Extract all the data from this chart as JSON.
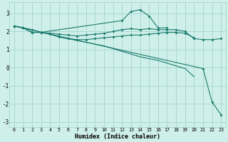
{
  "title": "",
  "xlabel": "Humidex (Indice chaleur)",
  "ylabel": "",
  "bg_color": "#cff0ea",
  "grid_color": "#aad8d2",
  "line_color": "#1a7a6e",
  "xlim": [
    -0.5,
    23.5
  ],
  "ylim": [
    -3.3,
    3.6
  ],
  "yticks": [
    -3,
    -2,
    -1,
    0,
    1,
    2,
    3
  ],
  "xticks": [
    0,
    1,
    2,
    3,
    4,
    5,
    6,
    7,
    8,
    9,
    10,
    11,
    12,
    13,
    14,
    15,
    16,
    17,
    18,
    19,
    20,
    21,
    22,
    23
  ],
  "lines": [
    {
      "x": [
        0,
        1,
        2,
        3,
        4,
        5,
        6,
        7,
        8,
        9,
        10,
        11,
        12,
        13,
        14,
        15,
        16,
        17,
        18,
        19,
        20,
        21,
        22,
        23
      ],
      "y": [
        2.3,
        2.2,
        2.1,
        1.95,
        1.9,
        1.85,
        1.8,
        1.75,
        1.8,
        1.85,
        1.9,
        2.0,
        2.1,
        2.15,
        2.1,
        2.15,
        2.1,
        2.1,
        2.1,
        2.0,
        1.6,
        1.55,
        1.55,
        1.6
      ],
      "marker": true
    },
    {
      "x": [
        0,
        1,
        2,
        3,
        4,
        5,
        6,
        7,
        8,
        9,
        10,
        11,
        12,
        13,
        14,
        15,
        16,
        17,
        18,
        19,
        20
      ],
      "y": [
        2.3,
        2.2,
        1.95,
        1.95,
        1.85,
        1.7,
        1.6,
        1.55,
        1.55,
        1.6,
        1.65,
        1.7,
        1.75,
        1.8,
        1.8,
        1.85,
        1.9,
        1.95,
        1.95,
        1.9,
        1.65
      ],
      "marker": true
    },
    {
      "x": [
        0,
        1,
        2,
        3,
        12,
        13,
        14,
        15,
        16,
        17
      ],
      "y": [
        2.3,
        2.2,
        1.95,
        1.95,
        2.6,
        3.1,
        3.2,
        2.85,
        2.2,
        2.2
      ],
      "marker": true
    },
    {
      "x": [
        0,
        21,
        22,
        23
      ],
      "y": [
        2.3,
        -0.05,
        -1.9,
        -2.6
      ],
      "marker": true
    },
    {
      "x": [
        0,
        1,
        2,
        3,
        4,
        5,
        6,
        7,
        8,
        9,
        10,
        11,
        12,
        13,
        14,
        15,
        16,
        17,
        18,
        19,
        20
      ],
      "y": [
        2.3,
        2.2,
        1.95,
        1.95,
        1.85,
        1.7,
        1.6,
        1.5,
        1.4,
        1.3,
        1.2,
        1.05,
        0.9,
        0.75,
        0.6,
        0.5,
        0.4,
        0.25,
        0.1,
        -0.05,
        -0.5
      ],
      "marker": false
    }
  ]
}
